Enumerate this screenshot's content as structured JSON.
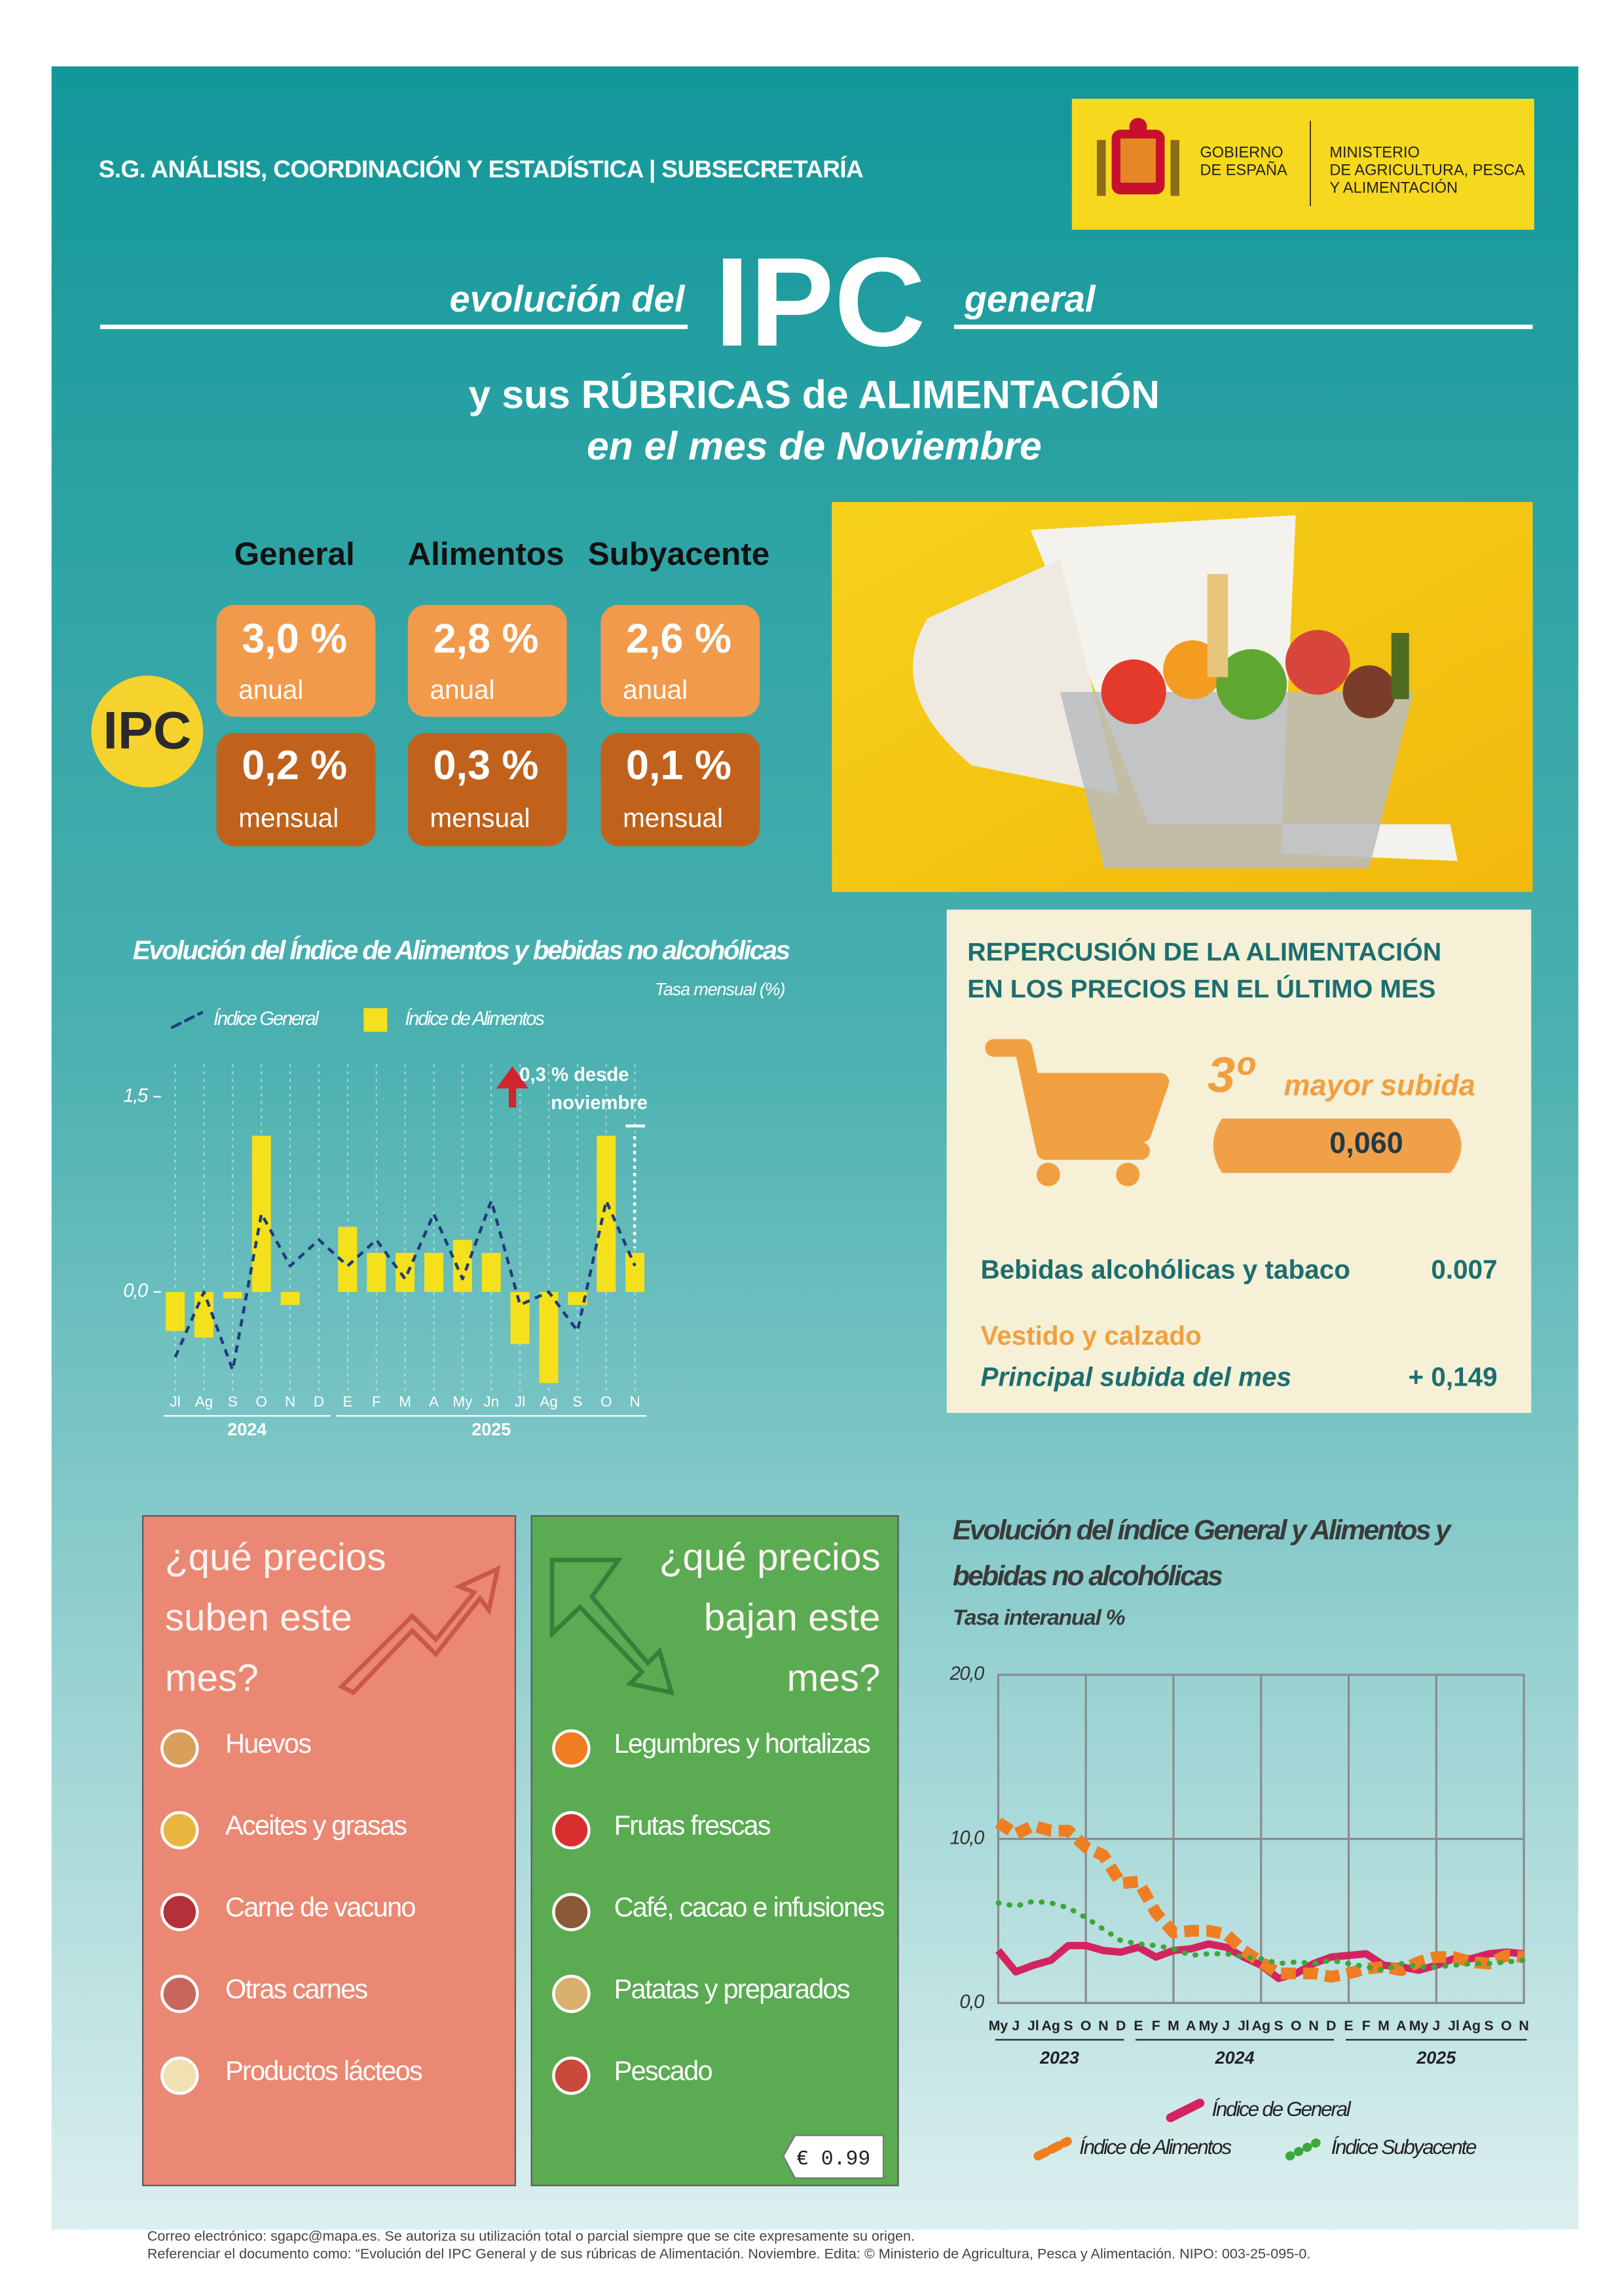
{
  "header": {
    "unit": "S.G. ANÁLISIS, COORDINACIÓN Y ESTADÍSTICA | SUBSECRETARÍA",
    "government": [
      "GOBIERNO",
      "DE ESPAÑA"
    ],
    "ministry": [
      "MINISTERIO",
      "DE AGRICULTURA, PESCA",
      "Y ALIMENTACIÓN"
    ]
  },
  "title": {
    "pre": "evolución del",
    "main": "IPC",
    "post": "general",
    "line2": "y sus RÚBRICAS de ALIMENTACIÓN",
    "line3": "en el mes de Noviembre"
  },
  "ipc": {
    "badge": "IPC",
    "columns": [
      {
        "name": "General",
        "annual": "3,0 %",
        "annual_label": "anual",
        "monthly": "0,2 %",
        "monthly_label": "mensual"
      },
      {
        "name": "Alimentos",
        "annual": "2,8 %",
        "annual_label": "anual",
        "monthly": "0,3 %",
        "monthly_label": "mensual"
      },
      {
        "name": "Subyacente",
        "annual": "2,6 %",
        "annual_label": "anual",
        "monthly": "0,1 %",
        "monthly_label": "mensual"
      }
    ]
  },
  "impact": {
    "title": [
      "REPERCUSIÓN DE LA ALIMENTACIÓN",
      "EN LOS PRECIOS EN EL ÚLTIMO MES"
    ],
    "rank": "3º",
    "rank_label": "mayor subida",
    "value": "0,060",
    "items": [
      {
        "label": "Bebidas alcohólicas y tabaco",
        "value": "0.007"
      }
    ],
    "top_label": "Vestido y calzado",
    "top_caption": "Principal subida del mes",
    "top_value": "+ 0,149"
  },
  "rising": {
    "title": [
      "¿qué precios",
      "suben este",
      "mes?"
    ],
    "items": [
      "Huevos",
      "Aceites y grasas",
      "Carne de vacuno",
      "Otras carnes",
      "Productos lácteos"
    ]
  },
  "falling": {
    "title": [
      "¿qué precios",
      "bajan este",
      "mes?"
    ],
    "items": [
      "Legumbres y hortalizas",
      "Frutas frescas",
      "Café, cacao e infusiones",
      "Patatas y preparados",
      "Pescado"
    ],
    "price_tag": "€  0.99"
  },
  "chart_data": [
    {
      "type": "bar",
      "title": "Evolución del Índice de Alimentos y bebidas no alcohólicas",
      "subtitle": "Tasa mensual (%)",
      "categories": [
        "Jl",
        "Ag",
        "S",
        "O",
        "N",
        "D",
        "E",
        "F",
        "M",
        "A",
        "My",
        "Jn",
        "Jl",
        "Ag",
        "S",
        "O",
        "N"
      ],
      "years": [
        "2024",
        "2025"
      ],
      "series": [
        {
          "name": "Índice General",
          "kind": "line",
          "dash": "dashed",
          "color": "#1f3c7c",
          "values": [
            -0.5,
            0.0,
            -0.6,
            0.6,
            0.2,
            0.4,
            0.2,
            0.4,
            0.1,
            0.6,
            0.1,
            0.7,
            -0.1,
            0.0,
            -0.3,
            0.7,
            0.2
          ]
        },
        {
          "name": "Índice de Alimentos",
          "kind": "bar",
          "color": "#f5e11b",
          "values": [
            -0.3,
            -0.35,
            -0.05,
            1.2,
            -0.1,
            0.0,
            0.5,
            0.3,
            0.3,
            0.3,
            0.4,
            0.3,
            -0.4,
            -0.7,
            -0.1,
            1.2,
            0.3
          ]
        }
      ],
      "ylim": [
        -0.85,
        1.75
      ],
      "yticks": [
        {
          "value": 0,
          "label": "0,0"
        },
        {
          "value": 1.5,
          "label": "1,5"
        }
      ],
      "annotation": [
        "0,3 % desde",
        "noviembre"
      ]
    },
    {
      "type": "line",
      "title": [
        "Evolución del índice General y Alimentos y",
        "bebidas no alcohólicas"
      ],
      "subtitle": "Tasa interanual %",
      "categories": [
        "My",
        "J",
        "Jl",
        "Ag",
        "S",
        "O",
        "N",
        "D",
        "E",
        "F",
        "M",
        "A",
        "My",
        "J",
        "Jl",
        "Ag",
        "S",
        "O",
        "N",
        "D",
        "E",
        "F",
        "M",
        "A",
        "My",
        "J",
        "Jl",
        "Ag",
        "S",
        "O",
        "N"
      ],
      "years": [
        "2023",
        "2024",
        "2025"
      ],
      "series": [
        {
          "name": "Índice de General",
          "kind": "line",
          "dash": "solid",
          "color": "#d3245f",
          "values": [
            3.2,
            1.9,
            2.3,
            2.6,
            3.5,
            3.5,
            3.2,
            3.1,
            3.4,
            2.8,
            3.2,
            3.3,
            3.6,
            3.4,
            2.8,
            2.3,
            1.5,
            1.8,
            2.4,
            2.8,
            2.9,
            3.0,
            2.3,
            2.2,
            2.0,
            2.3,
            2.7,
            2.7,
            3.0,
            3.1,
            3.0
          ]
        },
        {
          "name": "Índice de Alimentos",
          "kind": "line",
          "dash": "dashed",
          "color": "#ef7d22",
          "values": [
            11.0,
            10.3,
            10.8,
            10.5,
            10.5,
            9.5,
            9.0,
            7.3,
            7.4,
            5.5,
            4.3,
            4.4,
            4.4,
            4.2,
            3.2,
            2.5,
            1.8,
            1.8,
            1.8,
            1.6,
            1.8,
            2.1,
            2.2,
            2.0,
            2.5,
            2.8,
            2.8,
            2.5,
            2.4,
            2.9,
            2.8
          ]
        },
        {
          "name": "Índice Subyacente",
          "kind": "line",
          "dash": "dotted",
          "color": "#3aa83a",
          "values": [
            6.1,
            5.9,
            6.2,
            6.1,
            5.8,
            5.2,
            4.5,
            3.8,
            3.6,
            3.5,
            3.3,
            2.9,
            3.0,
            3.0,
            2.8,
            2.7,
            2.4,
            2.5,
            2.4,
            2.6,
            2.4,
            2.2,
            2.0,
            2.4,
            2.2,
            2.2,
            2.3,
            2.4,
            2.4,
            2.5,
            2.6
          ]
        }
      ],
      "ylim": [
        0,
        20
      ],
      "yticks": [
        {
          "value": 0,
          "label": "0,0"
        },
        {
          "value": 10,
          "label": "10,0"
        },
        {
          "value": 20,
          "label": "20,0"
        }
      ],
      "grid": true
    }
  ],
  "footer": [
    "Correo electrónico: sgapc@mapa.es. Se autoriza su utilización total o parcial siempre que se cite expresamente su origen.",
    "Referenciar el documento como: “Evolución del IPC General y de sus rúbricas de Alimentación. Noviembre. Edita: © Ministerio de Agricultura, Pesca y Alimentación. NIPO: 003-25-095-0."
  ]
}
